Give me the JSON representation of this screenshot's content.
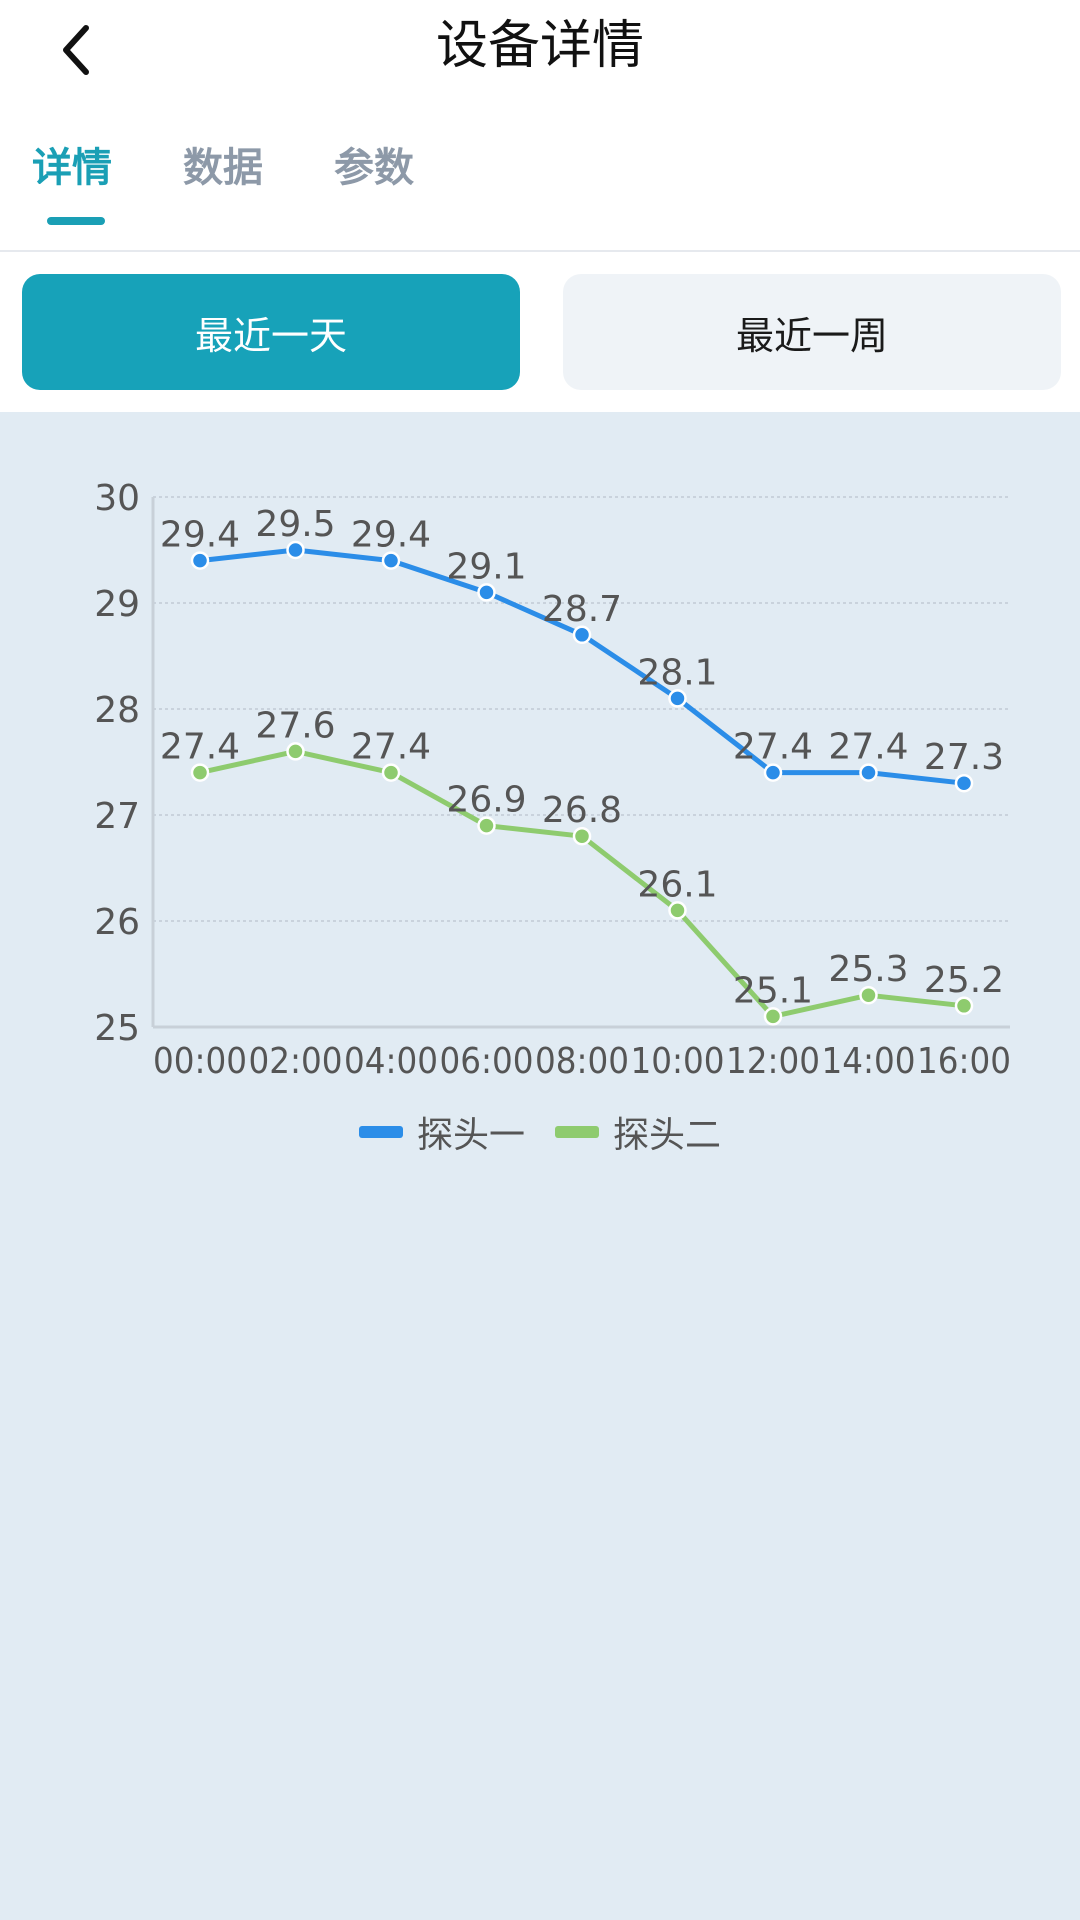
{
  "header": {
    "title": "设备详情",
    "back_icon": "chevron-left-icon"
  },
  "tabs": [
    {
      "label": "详情",
      "active": true
    },
    {
      "label": "数据",
      "active": false
    },
    {
      "label": "参数",
      "active": false
    }
  ],
  "range": {
    "day_label": "最近一天",
    "week_label": "最近一周",
    "selected": "day"
  },
  "colors": {
    "accent": "#17a2b9",
    "series1": "#2b8de8",
    "series2": "#8ecb6e"
  },
  "chart_data": {
    "type": "line",
    "categories": [
      "00:00",
      "02:00",
      "04:00",
      "06:00",
      "08:00",
      "10:00",
      "12:00",
      "14:00",
      "16:00"
    ],
    "series": [
      {
        "name": "探头一",
        "values": [
          29.4,
          29.5,
          29.4,
          29.1,
          28.7,
          28.1,
          27.4,
          27.4,
          27.3
        ]
      },
      {
        "name": "探头二",
        "values": [
          27.4,
          27.6,
          27.4,
          26.9,
          26.8,
          26.1,
          25.1,
          25.3,
          25.2
        ]
      }
    ],
    "ylim": [
      25,
      30
    ],
    "yticks": [
      25,
      26,
      27,
      28,
      29,
      30
    ],
    "grid": true,
    "legend": "bottom-center"
  }
}
